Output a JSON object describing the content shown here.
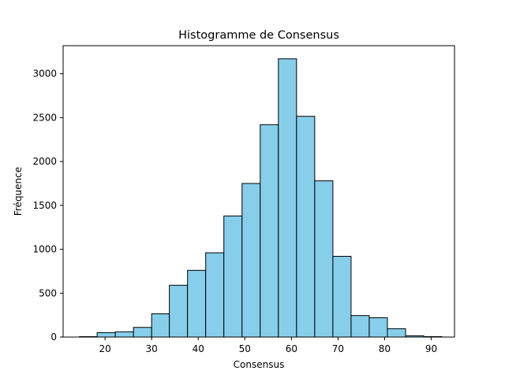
{
  "chart_data": {
    "type": "bar",
    "title": "Histogramme de Consensus",
    "xlabel": "Consensus",
    "ylabel": "Fréquence",
    "xlim": [
      11,
      95
    ],
    "ylim": [
      0,
      3320
    ],
    "bins": [
      {
        "start": 14.5,
        "end": 18.3,
        "value": 5
      },
      {
        "start": 18.3,
        "end": 22.2,
        "value": 50
      },
      {
        "start": 22.2,
        "end": 26.1,
        "value": 60
      },
      {
        "start": 26.1,
        "end": 30.0,
        "value": 110
      },
      {
        "start": 30.0,
        "end": 33.8,
        "value": 265
      },
      {
        "start": 33.8,
        "end": 37.7,
        "value": 590
      },
      {
        "start": 37.7,
        "end": 41.6,
        "value": 760
      },
      {
        "start": 41.6,
        "end": 45.5,
        "value": 960
      },
      {
        "start": 45.5,
        "end": 49.4,
        "value": 1380
      },
      {
        "start": 49.4,
        "end": 53.3,
        "value": 1750
      },
      {
        "start": 53.3,
        "end": 57.2,
        "value": 2420
      },
      {
        "start": 57.2,
        "end": 61.1,
        "value": 3170
      },
      {
        "start": 61.1,
        "end": 65.0,
        "value": 2515
      },
      {
        "start": 65.0,
        "end": 68.9,
        "value": 1780
      },
      {
        "start": 68.9,
        "end": 72.8,
        "value": 920
      },
      {
        "start": 72.8,
        "end": 76.7,
        "value": 245
      },
      {
        "start": 76.7,
        "end": 80.6,
        "value": 220
      },
      {
        "start": 80.6,
        "end": 84.5,
        "value": 95
      },
      {
        "start": 84.5,
        "end": 88.4,
        "value": 15
      },
      {
        "start": 88.4,
        "end": 92.3,
        "value": 5
      }
    ],
    "xticks": [
      20,
      30,
      40,
      50,
      60,
      70,
      80,
      90
    ],
    "xtick_labels": [
      "20",
      "30",
      "40",
      "50",
      "60",
      "70",
      "80",
      "90"
    ],
    "yticks": [
      0,
      500,
      1000,
      1500,
      2000,
      2500,
      3000
    ],
    "ytick_labels": [
      "0",
      "500",
      "1000",
      "1500",
      "2000",
      "2500",
      "3000"
    ],
    "bar_color": "#87ceeb",
    "edge_color": "#000000",
    "grid": false,
    "legend": false
  }
}
